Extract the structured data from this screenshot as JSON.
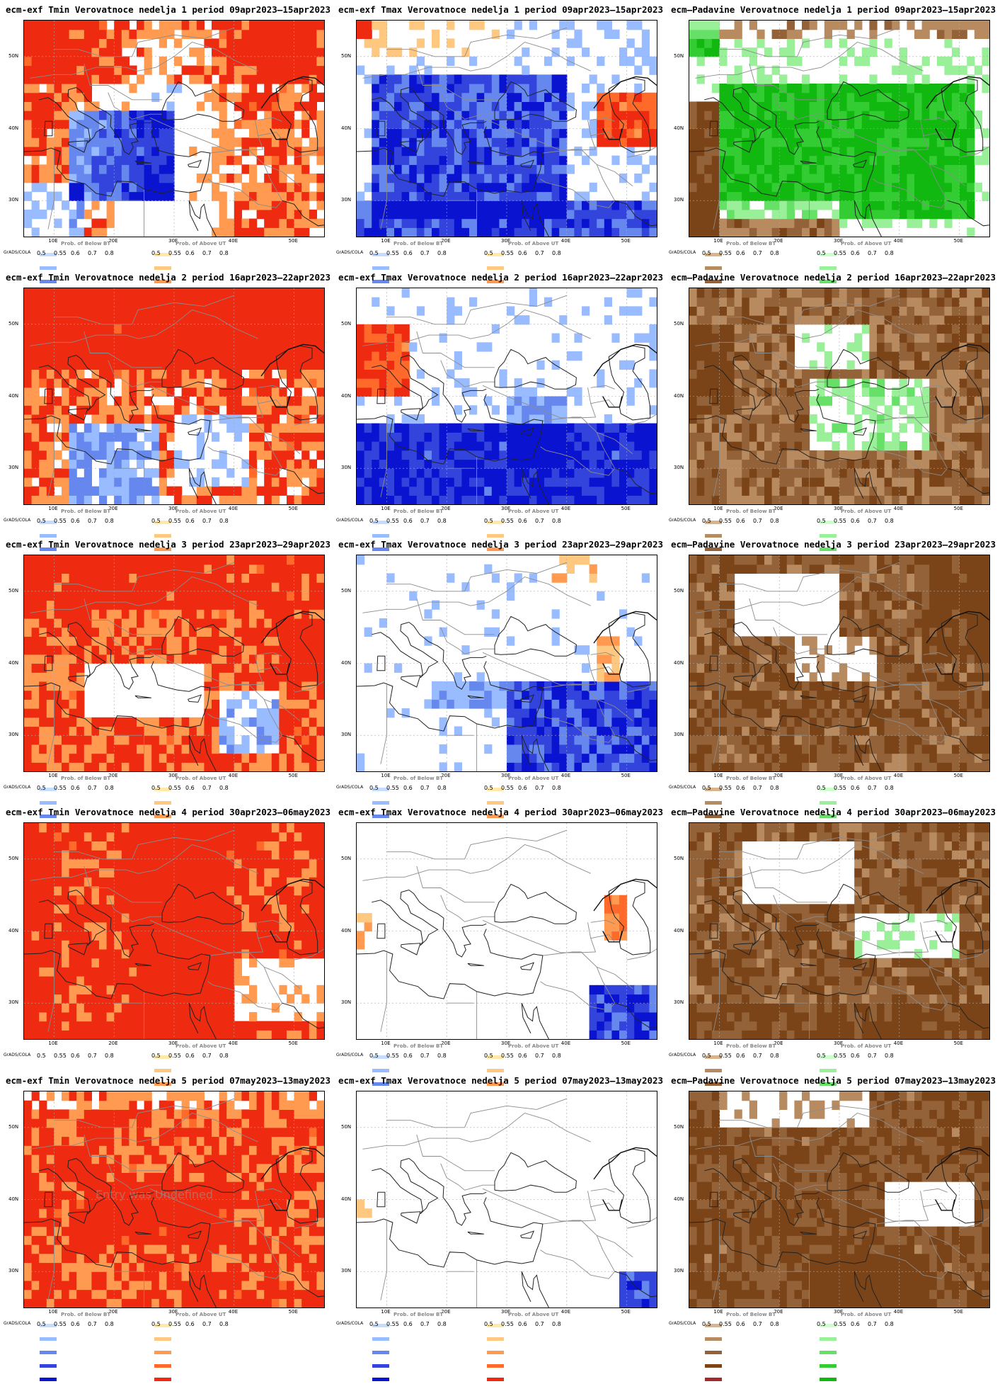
{
  "panels": [
    {
      "title": "ecm-exf Tmin Verovatnoce nedelja 1 period 09apr2023–15apr2023",
      "kind": "tmin",
      "week": 1
    },
    {
      "title": "ecm-exf Tmax Verovatnoce nedelja 1 period 09apr2023–15apr2023",
      "kind": "tmax",
      "week": 1
    },
    {
      "title": "ecm—Padavine Verovatnoce nedelja 1 period 09apr2023–15apr2023",
      "kind": "precip",
      "week": 1
    },
    {
      "title": "ecm-exf Tmin Verovatnoce nedelja 2 period 16apr2023–22apr2023",
      "kind": "tmin",
      "week": 2
    },
    {
      "title": "ecm-exf Tmax Verovatnoce nedelja 2 period 16apr2023–22apr2023",
      "kind": "tmax",
      "week": 2
    },
    {
      "title": "ecm—Padavine Verovatnoce nedelja 2 period 16apr2023–22apr2023",
      "kind": "precip",
      "week": 2
    },
    {
      "title": "ecm-exf Tmin Verovatnoce nedelja 3 period 23apr2023–29apr2023",
      "kind": "tmin",
      "week": 3
    },
    {
      "title": "ecm-exf Tmax Verovatnoce nedelja 3 period 23apr2023–29apr2023",
      "kind": "tmax",
      "week": 3
    },
    {
      "title": "ecm—Padavine Verovatnoce nedelja 3 period 23apr2023–29apr2023",
      "kind": "precip",
      "week": 3
    },
    {
      "title": "ecm-exf Tmin Verovatnoce nedelja 4 period 30apr2023–06may2023",
      "kind": "tmin",
      "week": 4
    },
    {
      "title": "ecm-exf Tmax Verovatnoce nedelja 4 period 30apr2023–06may2023",
      "kind": "tmax",
      "week": 4
    },
    {
      "title": "ecm—Padavine Verovatnoce nedelja 4 period 30apr2023–06may2023",
      "kind": "precip",
      "week": 4
    },
    {
      "title": "ecm-exf Tmin Verovatnoce nedelja 5 period 07may2023–13may2023",
      "kind": "tmin",
      "week": 5
    },
    {
      "title": "ecm-exf Tmax Verovatnoce nedelja 5 period 07may2023–13may2023",
      "kind": "tmax",
      "week": 5
    },
    {
      "title": "ecm—Padavine Verovatnoce nedelja 5 period 07may2023–13may2023",
      "kind": "precip",
      "week": 5
    }
  ],
  "lat_labels": [
    "50N",
    "40N",
    "30N"
  ],
  "lon_labels": [
    "10E",
    "20E",
    "30E",
    "40E",
    "50E"
  ],
  "legend": {
    "grads": "GrADS/COLA",
    "below_title": "Prob. of Below BT",
    "above_title": "Prob. of Above UT",
    "ticks": [
      "0.5",
      "0.55",
      "0.6",
      "0.7",
      "0.8"
    ],
    "colors": {
      "cold": [
        "#c6dcff",
        "#99bbff",
        "#6688ee",
        "#3344dd",
        "#0a14d0"
      ],
      "warm": [
        "#ffe8a8",
        "#ffc880",
        "#ff9a50",
        "#ff6a2a",
        "#ee2a10"
      ],
      "dry": [
        "#d8b48a",
        "#b88a60",
        "#946238",
        "#7a4418",
        "#a12a2a"
      ],
      "wet": [
        "#ccffcc",
        "#99f099",
        "#66e066",
        "#33cc33",
        "#10b810"
      ]
    }
  },
  "watermark": "Entry was Undefined"
}
